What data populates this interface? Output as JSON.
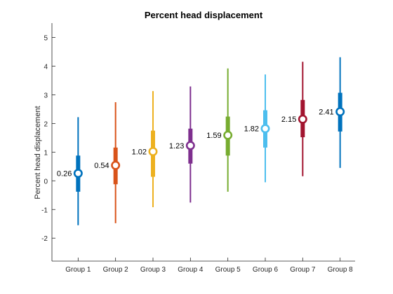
{
  "chart_data": {
    "type": "boxplot",
    "title": "Percent head displacement",
    "xlabel": "",
    "ylabel": "Percent head displacement",
    "ylim": [
      -2.8,
      5.5
    ],
    "yticks": [
      -2,
      -1,
      0,
      1,
      2,
      3,
      4,
      5
    ],
    "grid": false,
    "categories": [
      "Group 1",
      "Group 2",
      "Group 3",
      "Group 4",
      "Group 5",
      "Group 6",
      "Group 7",
      "Group 8"
    ],
    "series": [
      {
        "category": "Group 1",
        "median": 0.26,
        "median_label": "0.26",
        "q1": -0.38,
        "q3": 0.88,
        "whisker_low": -1.55,
        "whisker_high": 2.22,
        "color": "#0072BD"
      },
      {
        "category": "Group 2",
        "median": 0.54,
        "median_label": "0.54",
        "q1": -0.12,
        "q3": 1.16,
        "whisker_low": -1.48,
        "whisker_high": 2.74,
        "color": "#D95319"
      },
      {
        "category": "Group 3",
        "median": 1.02,
        "median_label": "1.02",
        "q1": 0.14,
        "q3": 1.75,
        "whisker_low": -0.92,
        "whisker_high": 3.13,
        "color": "#EDB120"
      },
      {
        "category": "Group 4",
        "median": 1.23,
        "median_label": "1.23",
        "q1": 0.6,
        "q3": 1.82,
        "whisker_low": -0.76,
        "whisker_high": 3.29,
        "color": "#7E2F8E"
      },
      {
        "category": "Group 5",
        "median": 1.59,
        "median_label": "1.59",
        "q1": 0.88,
        "q3": 2.24,
        "whisker_low": -0.38,
        "whisker_high": 3.92,
        "color": "#77AC30"
      },
      {
        "category": "Group 6",
        "median": 1.82,
        "median_label": "1.82",
        "q1": 1.16,
        "q3": 2.46,
        "whisker_low": -0.05,
        "whisker_high": 3.71,
        "color": "#4DBEEE"
      },
      {
        "category": "Group 7",
        "median": 2.15,
        "median_label": "2.15",
        "q1": 1.52,
        "q3": 2.82,
        "whisker_low": 0.16,
        "whisker_high": 4.15,
        "color": "#A2142F"
      },
      {
        "category": "Group 8",
        "median": 2.41,
        "median_label": "2.41",
        "q1": 1.72,
        "q3": 3.07,
        "whisker_low": 0.45,
        "whisker_high": 4.31,
        "color": "#0072BD"
      }
    ]
  }
}
